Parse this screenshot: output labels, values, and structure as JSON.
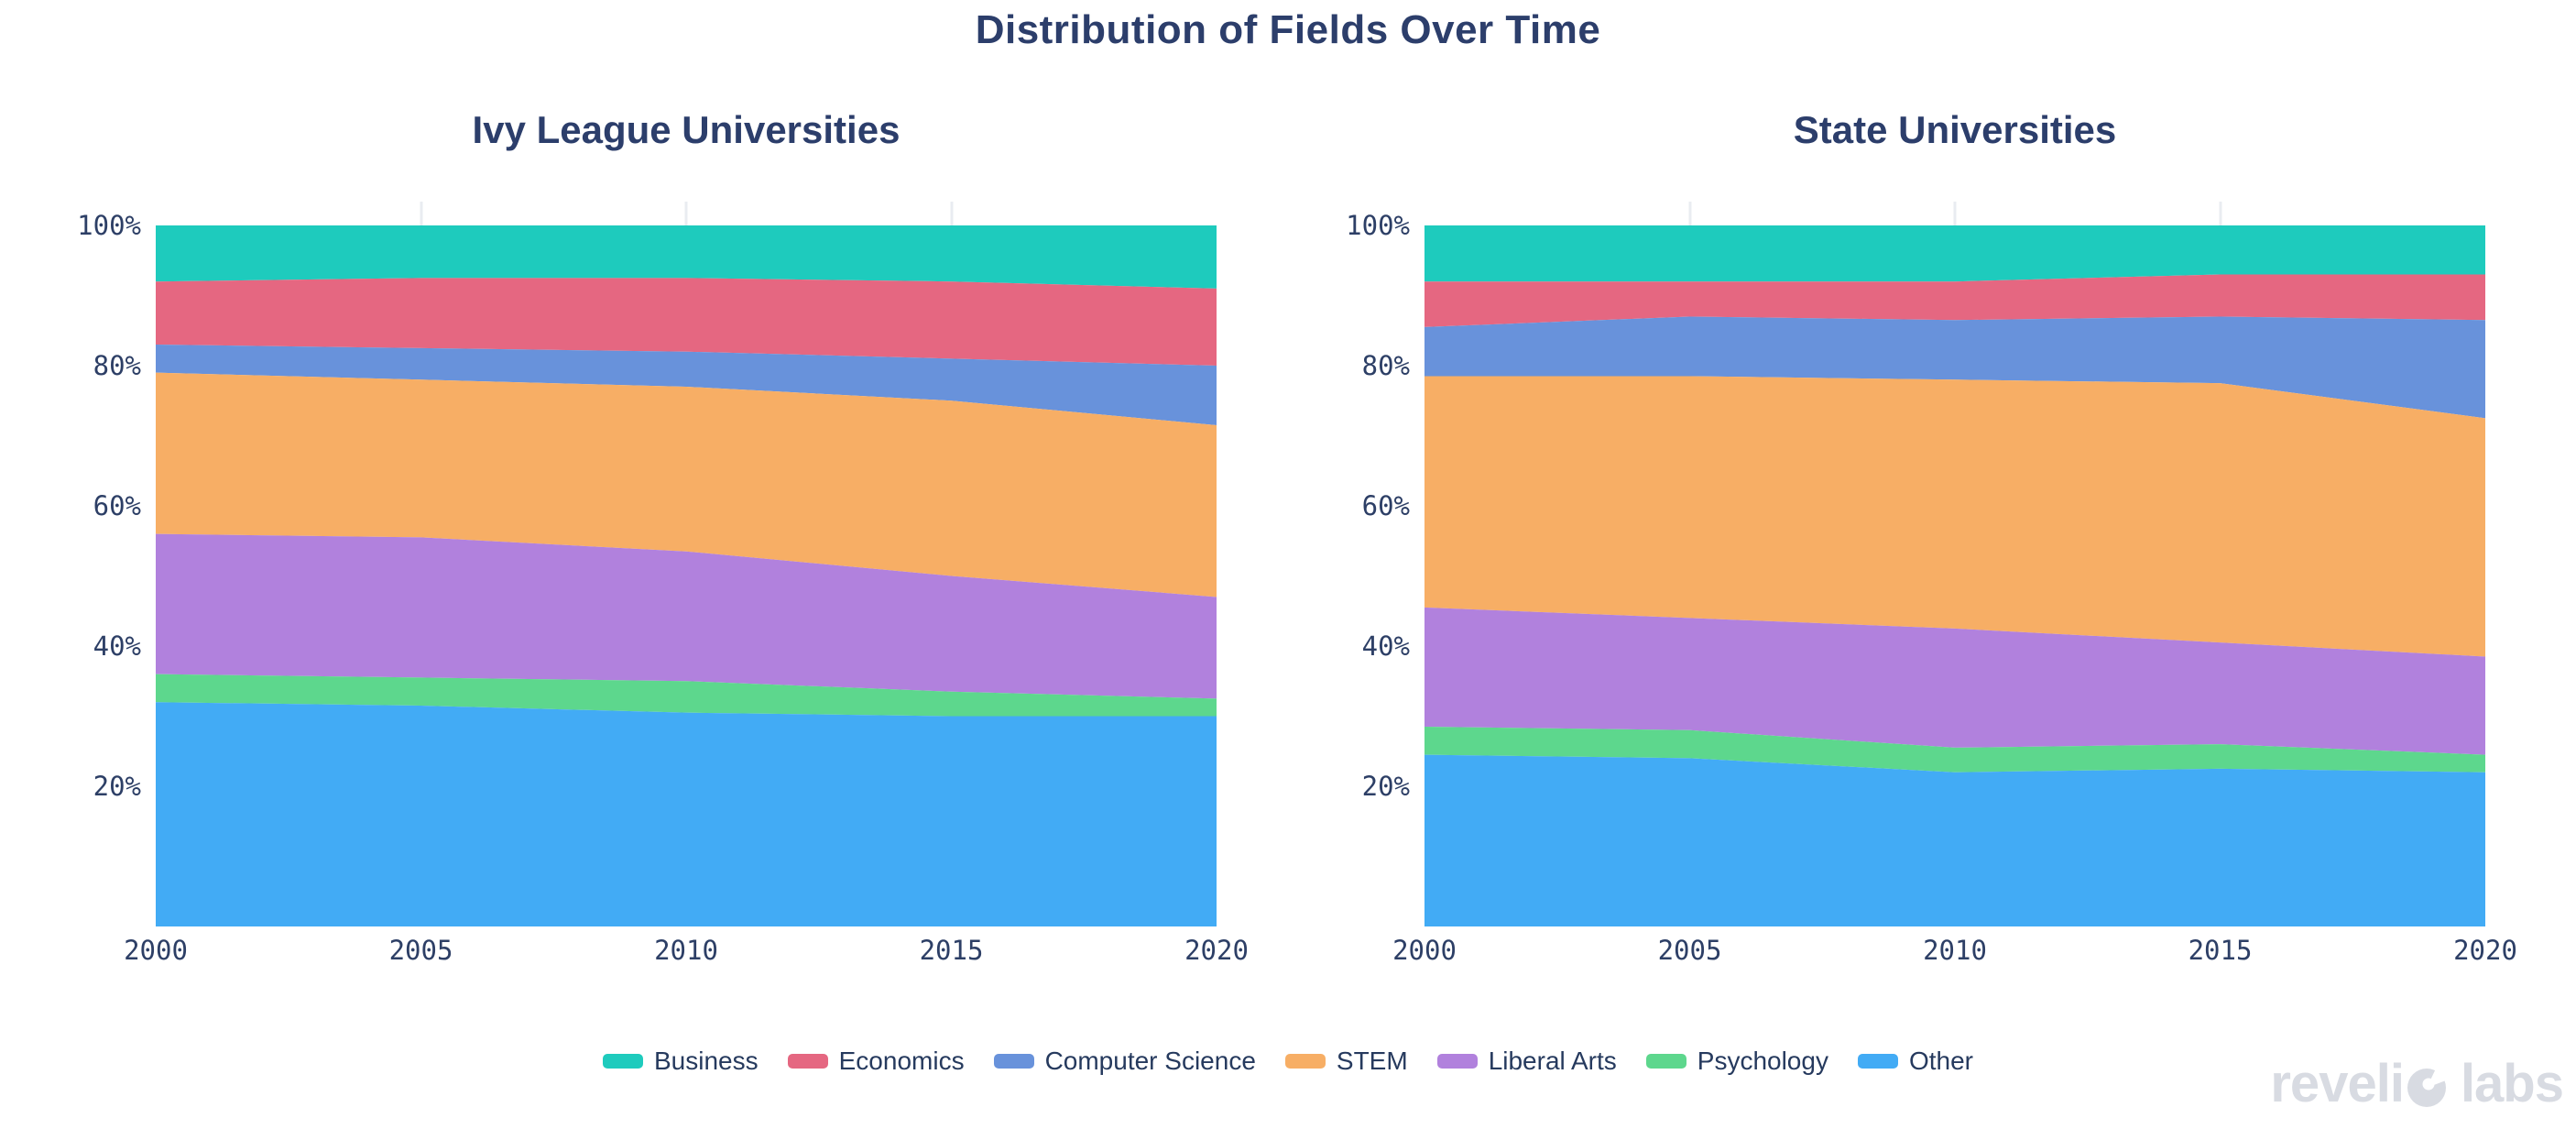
{
  "header": {
    "title": "Distribution of Fields Over Time"
  },
  "chart_data": [
    {
      "type": "area",
      "stacked": true,
      "normalized": "percent",
      "title": "Ivy League Universities",
      "x": [
        2000,
        2005,
        2010,
        2015,
        2020
      ],
      "xticks": [
        "2000",
        "2005",
        "2010",
        "2015",
        "2020"
      ],
      "yticks": [
        "100%",
        "80%",
        "60%",
        "40%",
        "20%"
      ],
      "ylim": [
        0,
        100
      ],
      "xlabel": "",
      "ylabel": "",
      "grid": false,
      "stack_order": "first_series_on_top",
      "series": [
        {
          "name": "Business",
          "color": "#1ecbbd",
          "values": [
            8,
            7.5,
            7.5,
            8,
            9
          ]
        },
        {
          "name": "Economics",
          "color": "#e56781",
          "values": [
            9,
            10,
            10.5,
            11,
            11
          ]
        },
        {
          "name": "Computer Science",
          "color": "#6892db",
          "values": [
            4,
            4.5,
            5,
            6,
            8.5
          ]
        },
        {
          "name": "STEM",
          "color": "#f7ae65",
          "values": [
            23,
            22.5,
            23.5,
            25,
            24.5
          ]
        },
        {
          "name": "Liberal Arts",
          "color": "#b181dd",
          "values": [
            20,
            20,
            18.5,
            16.5,
            14.5
          ]
        },
        {
          "name": "Psychology",
          "color": "#5dd78d",
          "values": [
            4,
            4,
            4.5,
            3.5,
            2.5
          ]
        },
        {
          "name": "Other",
          "color": "#42abf5",
          "values": [
            32,
            31.5,
            30.5,
            30,
            30
          ]
        }
      ]
    },
    {
      "type": "area",
      "stacked": true,
      "normalized": "percent",
      "title": "State Universities",
      "x": [
        2000,
        2005,
        2010,
        2015,
        2020
      ],
      "xticks": [
        "2000",
        "2005",
        "2010",
        "2015",
        "2020"
      ],
      "yticks": [
        "100%",
        "80%",
        "60%",
        "40%",
        "20%"
      ],
      "ylim": [
        0,
        100
      ],
      "xlabel": "",
      "ylabel": "",
      "grid": false,
      "stack_order": "first_series_on_top",
      "series": [
        {
          "name": "Business",
          "color": "#1ecbbd",
          "values": [
            8,
            8,
            8,
            7,
            7
          ]
        },
        {
          "name": "Economics",
          "color": "#e56781",
          "values": [
            6.5,
            5,
            5.5,
            6,
            6.5
          ]
        },
        {
          "name": "Computer Science",
          "color": "#6892db",
          "values": [
            7,
            8.5,
            8.5,
            9.5,
            14
          ]
        },
        {
          "name": "STEM",
          "color": "#f7ae65",
          "values": [
            33,
            34.5,
            35.5,
            37,
            34
          ]
        },
        {
          "name": "Liberal Arts",
          "color": "#b181dd",
          "values": [
            17,
            16,
            17,
            14.5,
            14
          ]
        },
        {
          "name": "Psychology",
          "color": "#5dd78d",
          "values": [
            4,
            4,
            3.5,
            3.5,
            2.5
          ]
        },
        {
          "name": "Other",
          "color": "#42abf5",
          "values": [
            24.5,
            24,
            22,
            22.5,
            22
          ]
        }
      ]
    }
  ],
  "legend": {
    "items": [
      {
        "label": "Business",
        "color": "#1ecbbd"
      },
      {
        "label": "Economics",
        "color": "#e56781"
      },
      {
        "label": "Computer Science",
        "color": "#6892db"
      },
      {
        "label": "STEM",
        "color": "#f7ae65"
      },
      {
        "label": "Liberal Arts",
        "color": "#b181dd"
      },
      {
        "label": "Psychology",
        "color": "#5dd78d"
      },
      {
        "label": "Other",
        "color": "#42abf5"
      }
    ]
  },
  "watermark": {
    "brand_prefix": "reveli",
    "brand_suffix": "labs",
    "full_text": "revelio labs",
    "color": "#d8dbe2"
  }
}
